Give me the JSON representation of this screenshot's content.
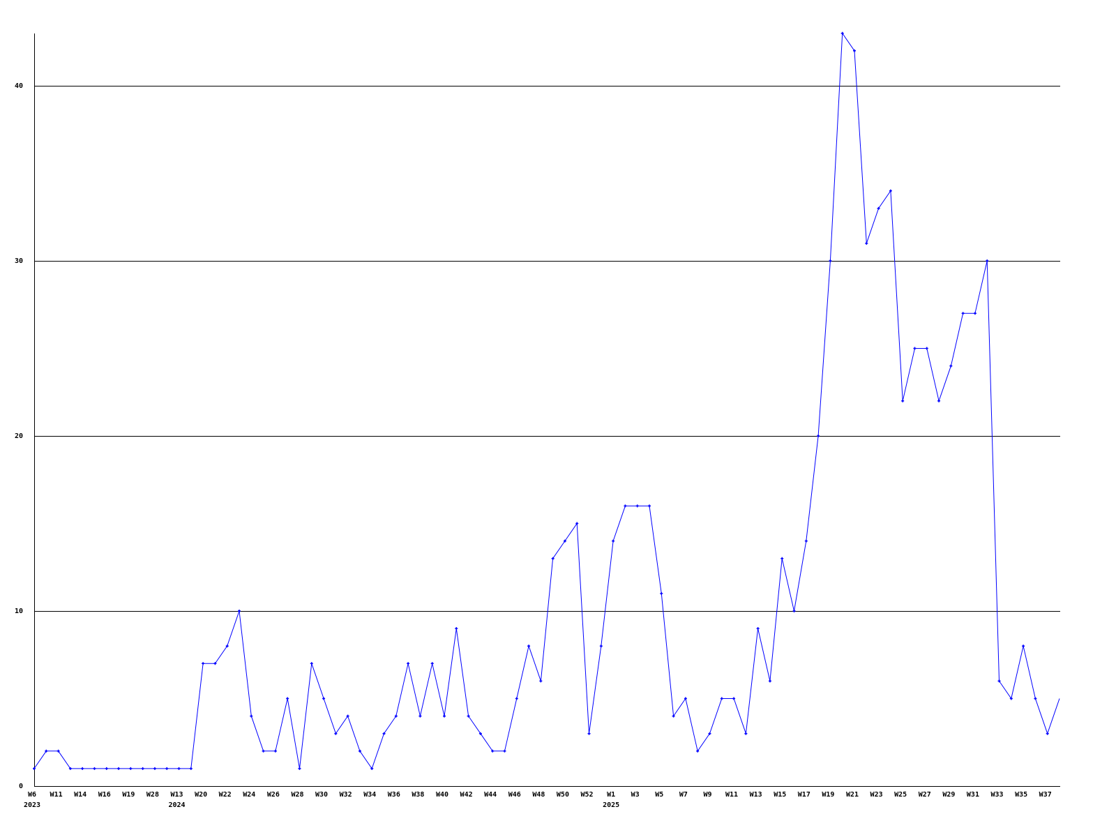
{
  "chart_data": {
    "type": "line",
    "title": "",
    "xlabel": "",
    "ylabel": "",
    "ylim": [
      0,
      43
    ],
    "yticks": [
      0,
      10,
      20,
      30,
      40
    ],
    "grid": true,
    "line_color": "#0000ff",
    "categories": [
      "W6",
      "",
      "W11",
      "",
      "W14",
      "",
      "W16",
      "",
      "W19",
      "",
      "W28",
      "",
      "W13",
      "",
      "W20",
      "",
      "W22",
      "",
      "W24",
      "",
      "W26",
      "",
      "W28",
      "",
      "W30",
      "",
      "W32",
      "",
      "W34",
      "",
      "W36",
      "",
      "W38",
      "",
      "W40",
      "",
      "W42",
      "",
      "W44",
      "",
      "W46",
      "",
      "W48",
      "",
      "W50",
      "",
      "W52",
      "",
      "W1",
      "",
      "W3",
      "",
      "W5",
      "",
      "W7",
      "",
      "W9",
      "",
      "W11",
      "",
      "W13",
      "",
      "W15",
      "",
      "W17",
      "",
      "W19",
      "",
      "W21",
      "",
      "W23",
      "",
      "W25",
      "",
      "W27",
      "",
      "W29",
      "",
      "W31",
      "",
      "W33",
      "",
      "W35",
      "",
      "W37",
      ""
    ],
    "year_labels": [
      {
        "index": 0,
        "label": "2023"
      },
      {
        "index": 12,
        "label": "2024"
      },
      {
        "index": 48,
        "label": "2025"
      }
    ],
    "values": [
      1,
      2,
      2,
      1,
      1,
      1,
      1,
      1,
      1,
      1,
      1,
      1,
      1,
      1,
      7,
      7,
      8,
      10,
      4,
      2,
      2,
      5,
      1,
      7,
      5,
      3,
      4,
      2,
      1,
      3,
      4,
      7,
      4,
      7,
      4,
      9,
      4,
      3,
      2,
      2,
      5,
      8,
      6,
      13,
      14,
      15,
      3,
      8,
      14,
      16,
      16,
      16,
      11,
      4,
      5,
      2,
      3,
      5,
      5,
      3,
      9,
      6,
      13,
      10,
      14,
      20,
      30,
      43,
      42,
      31,
      33,
      34,
      22,
      25,
      25,
      22,
      24,
      27,
      27,
      30,
      6,
      5,
      8,
      5,
      3,
      5
    ]
  }
}
